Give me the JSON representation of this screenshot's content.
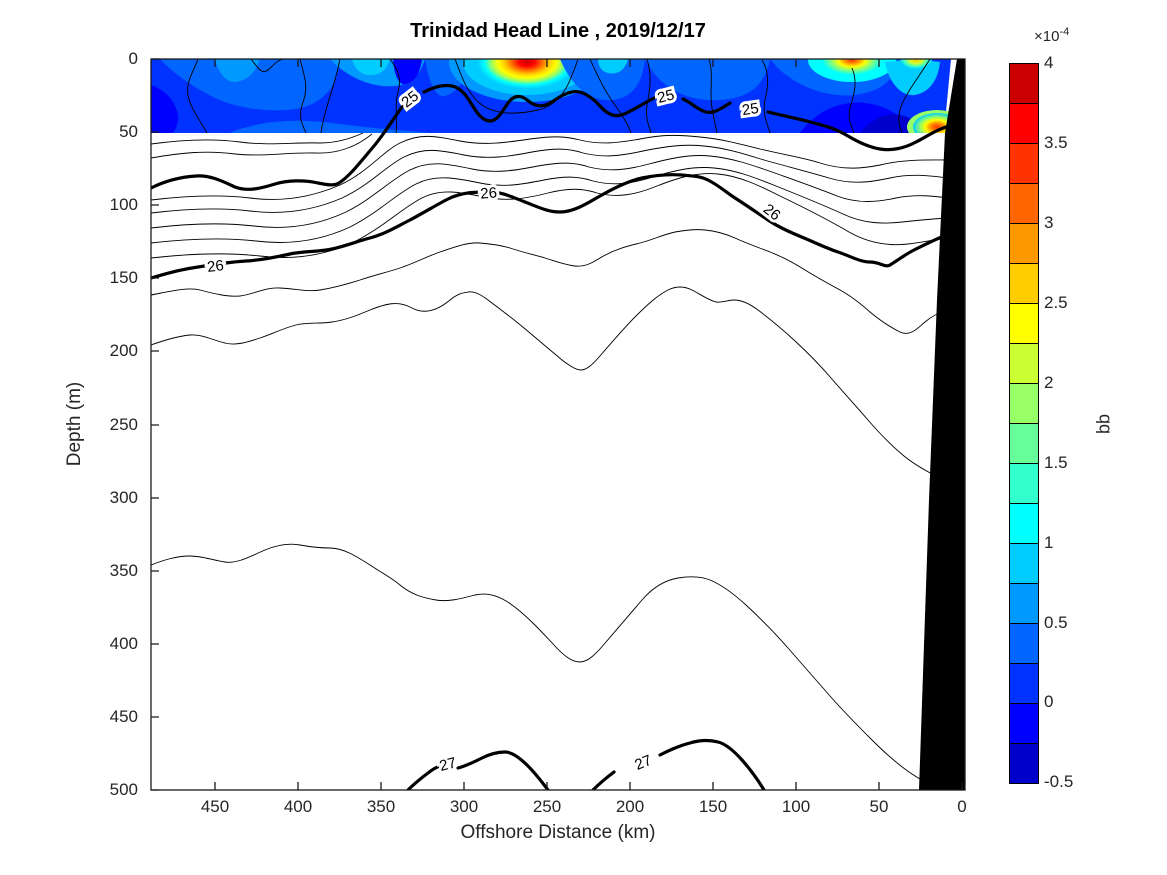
{
  "title": "Trinidad Head Line , 2019/12/17",
  "axes": {
    "x": {
      "label": "Offshore Distance (km)",
      "tick_labels": [
        "450",
        "400",
        "350",
        "300",
        "250",
        "200",
        "150",
        "100",
        "50",
        "0"
      ],
      "reversed": true
    },
    "y": {
      "label": "Depth (m)",
      "tick_labels": [
        "0",
        "50",
        "100",
        "150",
        "200",
        "250",
        "300",
        "350",
        "400",
        "450",
        "500"
      ]
    }
  },
  "colorbar": {
    "label": "bb",
    "multiplier_base": "×10",
    "multiplier_exponent": "-4",
    "tick_labels": [
      "4",
      "3.5",
      "3",
      "2.5",
      "2",
      "1.5",
      "1",
      "0.5",
      "0",
      "-0.5"
    ],
    "colors_bottom_to_top": [
      "#0000cc",
      "#0000ff",
      "#0033ff",
      "#0066ff",
      "#0099ff",
      "#00ccff",
      "#00ffff",
      "#33ffcc",
      "#66ff99",
      "#99ff66",
      "#ccff33",
      "#ffff00",
      "#ffcc00",
      "#ff9900",
      "#ff6600",
      "#ff3300",
      "#ff0000",
      "#cc0000"
    ]
  },
  "contours": {
    "label25": "25",
    "label26": "26",
    "label27": "27"
  },
  "chart_data": {
    "type": "contour",
    "title": "Trinidad Head Line , 2019/12/17",
    "xlabel": "Offshore Distance (km)",
    "ylabel": "Depth (m)",
    "xlim": [
      490,
      0
    ],
    "ylim": [
      0,
      500
    ],
    "x_axis_reversed": true,
    "y_axis_increases_downward": true,
    "x_ticks": [
      450,
      400,
      350,
      300,
      250,
      200,
      150,
      100,
      50,
      0
    ],
    "y_ticks": [
      0,
      50,
      100,
      150,
      200,
      250,
      300,
      350,
      400,
      450,
      500
    ],
    "grid": false,
    "filled_field": {
      "variable": "bb",
      "units_scale": "1e-4",
      "value_range": [
        -0.5,
        4
      ],
      "depth_extent_m": [
        0,
        50
      ],
      "colormap": "jet",
      "n_color_levels": 18,
      "background_values": "mostly 0.25–0.75 (blue shades)",
      "hotspots": [
        {
          "offshore_km": 262,
          "depth_m": 0,
          "peak_value": 4.0
        },
        {
          "offshore_km": 66,
          "depth_m": 0,
          "peak_value": 3.3
        },
        {
          "offshore_km": 27,
          "depth_m": 0,
          "peak_value": 2.4
        },
        {
          "offshore_km": 15,
          "depth_m": 45,
          "peak_value": 3.3
        },
        {
          "offshore_km": 355,
          "depth_m": 2,
          "peak_value": 1.4
        }
      ]
    },
    "contour_lines": {
      "labeled_levels": [
        25,
        26,
        27
      ],
      "labeled_line_style": "thick black",
      "unlabeled_line_style": "thin black intermediate isopycnals",
      "label_points": [
        {
          "level": 25,
          "offshore_km": 331,
          "depth_m": 26
        },
        {
          "level": 25,
          "offshore_km": 177,
          "depth_m": 25
        },
        {
          "level": 25,
          "offshore_km": 127,
          "depth_m": 33
        },
        {
          "level": 26,
          "offshore_km": 450,
          "depth_m": 141
        },
        {
          "level": 26,
          "offshore_km": 285,
          "depth_m": 91
        },
        {
          "level": 26,
          "offshore_km": 117,
          "depth_m": 103
        },
        {
          "level": 27,
          "offshore_km": 310,
          "depth_m": 481
        },
        {
          "level": 27,
          "offshore_km": 191,
          "depth_m": 480
        }
      ]
    },
    "bathymetry_mask": {
      "description": "solid black seafloor/coast wedge on right side, from ~27 km offshore at 500 m depth tapering to ~3 km at the surface"
    },
    "colorbar": {
      "label": "bb",
      "scale_label": "×10^-4",
      "ticks": [
        4,
        3.5,
        3,
        2.5,
        2,
        1.5,
        1,
        0.5,
        0,
        -0.5
      ]
    }
  }
}
